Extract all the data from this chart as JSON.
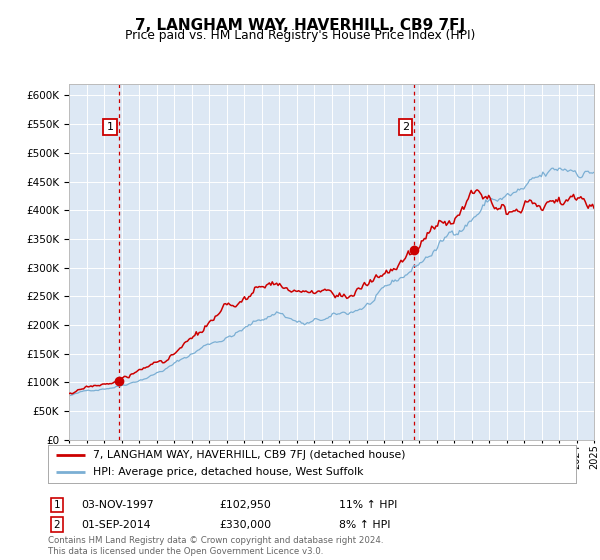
{
  "title": "7, LANGHAM WAY, HAVERHILL, CB9 7FJ",
  "subtitle": "Price paid vs. HM Land Registry's House Price Index (HPI)",
  "legend_property": "7, LANGHAM WAY, HAVERHILL, CB9 7FJ (detached house)",
  "legend_hpi": "HPI: Average price, detached house, West Suffolk",
  "annotation1_label": "1",
  "annotation1_date": "03-NOV-1997",
  "annotation1_price": "£102,950",
  "annotation1_hpi": "11% ↑ HPI",
  "annotation2_label": "2",
  "annotation2_date": "01-SEP-2014",
  "annotation2_price": "£330,000",
  "annotation2_hpi": "8% ↑ HPI",
  "footer": "Contains HM Land Registry data © Crown copyright and database right 2024.\nThis data is licensed under the Open Government Licence v3.0.",
  "property_color": "#cc0000",
  "hpi_color": "#7bafd4",
  "plot_bg": "#dde8f4",
  "grid_color": "#ffffff",
  "annotation_box_color": "#cc0000",
  "dashed_line_color": "#cc0000",
  "ylim": [
    0,
    620000
  ],
  "year_start": 1995,
  "year_end": 2025,
  "purchase1_year": 1997.84,
  "purchase1_value": 102950,
  "purchase2_year": 2014.67,
  "purchase2_value": 330000
}
